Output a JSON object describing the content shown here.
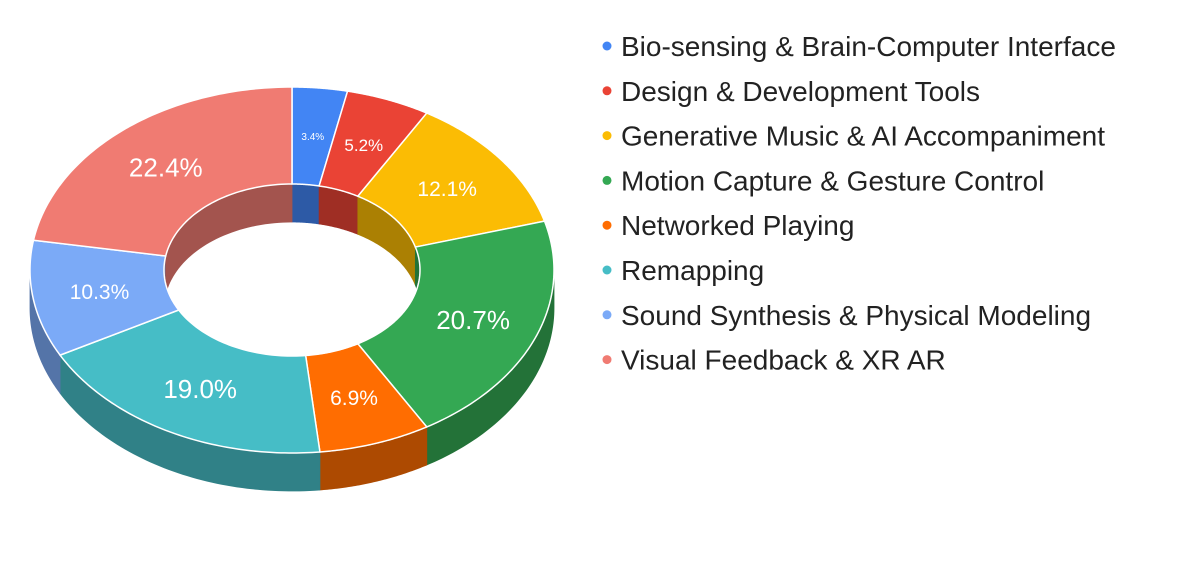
{
  "chart_data": {
    "type": "pie",
    "variant": "3d-donut",
    "legend_position": "right",
    "series": [
      {
        "name": "Bio-sensing & Brain-Computer Interface",
        "value": 3.4,
        "label": "3.4%",
        "color": "#4285f4"
      },
      {
        "name": "Design & Development Tools",
        "value": 5.2,
        "label": "5.2%",
        "color": "#ea4335"
      },
      {
        "name": "Generative Music & AI Accompaniment",
        "value": 12.1,
        "label": "12.1%",
        "color": "#fbbc04"
      },
      {
        "name": "Motion Capture & Gesture Control",
        "value": 20.7,
        "label": "20.7%",
        "color": "#34a853"
      },
      {
        "name": "Networked Playing",
        "value": 6.9,
        "label": "6.9%",
        "color": "#ff6d01"
      },
      {
        "name": "Remapping",
        "value": 19.0,
        "label": "19.0%",
        "color": "#46bdc6"
      },
      {
        "name": "Sound Synthesis & Physical Modeling",
        "value": 10.3,
        "label": "10.3%",
        "color": "#7baaf7"
      },
      {
        "name": "Visual Feedback & XR AR",
        "value": 22.4,
        "label": "22.4%",
        "color": "#f07b72"
      }
    ]
  }
}
